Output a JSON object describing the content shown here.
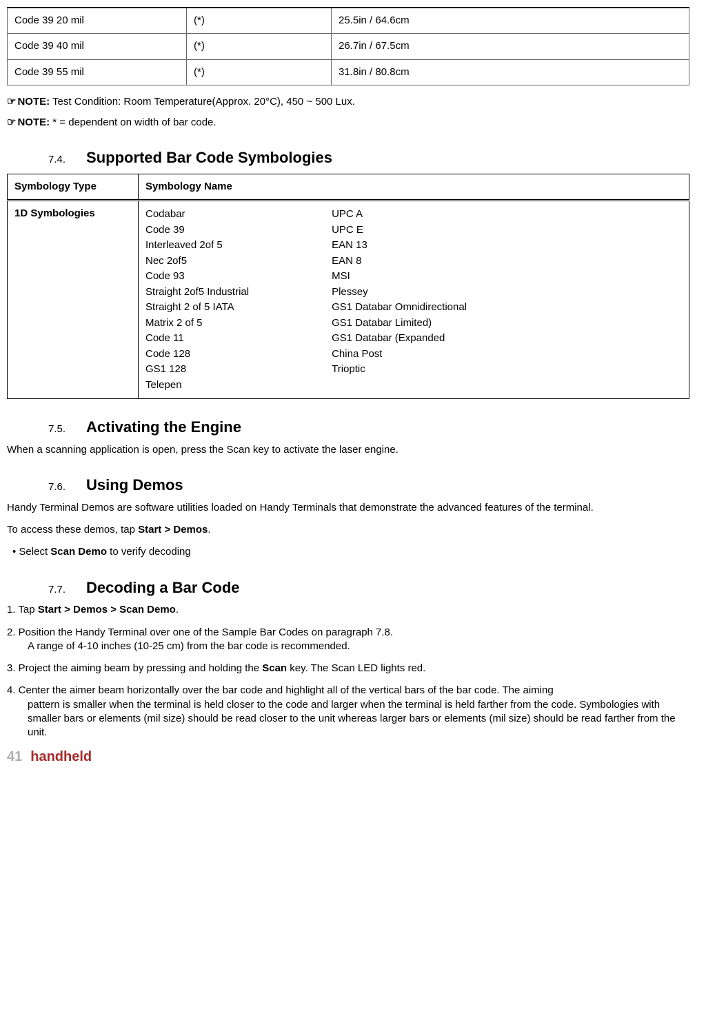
{
  "spec_table": {
    "rows": [
      {
        "c1": "Code 39 20 mil",
        "c2": "(*)",
        "c3": "25.5in / 64.6cm"
      },
      {
        "c1": "Code 39 40 mil",
        "c2": "(*)",
        "c3": "26.7in / 67.5cm"
      },
      {
        "c1": "Code 39 55 mil",
        "c2": "(*)",
        "c3": "31.8in / 80.8cm"
      }
    ]
  },
  "notes": {
    "icon": "☞",
    "label": "NOTE:",
    "n1": " Test Condition: Room Temperature(Approx. 20°C), 450 ~ 500 Lux.",
    "n2": " * = dependent on width of bar code."
  },
  "sec74": {
    "num": "7.4.",
    "title": "Supported Bar Code Symbologies"
  },
  "sym_table": {
    "h1": "Symbology Type",
    "h2": "Symbology Name",
    "row1_type": "1D Symbologies",
    "col1": [
      "Codabar",
      "Code 39",
      "Interleaved 2of 5",
      "Nec 2of5",
      "Code 93",
      "Straight 2of5 Industrial",
      "Straight 2 of 5 IATA",
      "Matrix 2 of 5",
      "Code 11",
      "Code 128",
      "GS1 128",
      "Telepen"
    ],
    "col2": [
      "UPC A",
      "UPC E",
      "EAN 13",
      "EAN 8",
      "MSI",
      "Plessey",
      "GS1 Databar Omnidirectional",
      "GS1 Databar Limited)",
      "GS1 Databar (Expanded",
      "China Post",
      "Trioptic"
    ]
  },
  "sec75": {
    "num": "7.5.",
    "title": "Activating the Engine",
    "body": "When a scanning application is open, press the Scan key to activate the laser engine."
  },
  "sec76": {
    "num": "7.6.",
    "title": "Using Demos",
    "p1": "Handy Terminal Demos are software utilities loaded on Handy Terminals that demonstrate the advanced features of the terminal.",
    "p2a": "To access these demos, tap ",
    "p2b": "Start > Demos",
    "p2c": ".",
    "b1a": "• Select ",
    "b1b": "Scan Demo",
    "b1c": " to verify decoding"
  },
  "sec77": {
    "num": "7.7.",
    "title": "Decoding a Bar Code",
    "s1a": "1. Tap ",
    "s1b": "Start > Demos > Scan Demo",
    "s1c": ".",
    "s2a": "2. Position the Handy Terminal over one of the Sample Bar Codes on paragraph 7.8.",
    "s2b": "A range of 4-10 inches (10-25 cm) from the bar code is recommended.",
    "s3a": "3. Project the aiming beam by pressing and holding the ",
    "s3b": "Scan",
    "s3c": " key. The Scan LED lights red.",
    "s4a": "4. Center the aimer beam horizontally over the bar code and highlight all of the vertical bars of the bar code. The aiming",
    "s4b": "pattern is smaller when the terminal is held closer to the code and larger when the terminal is held farther from the code. Symbologies with smaller bars or elements (mil size) should be read closer to the unit whereas larger bars or elements (mil size) should be read farther from the unit."
  },
  "footer": {
    "page": "41",
    "brand": "handheld"
  }
}
